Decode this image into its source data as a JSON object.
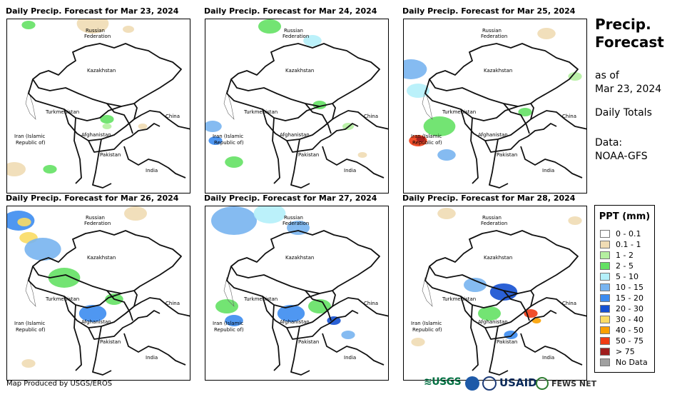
{
  "panels": [
    {
      "title": "Daily Precip. Forecast for Mar 23, 2024"
    },
    {
      "title": "Daily Precip. Forecast for Mar 24, 2024"
    },
    {
      "title": "Daily Precip. Forecast for Mar 25, 2024"
    },
    {
      "title": "Daily Precip. Forecast for Mar 26, 2024"
    },
    {
      "title": "Daily Precip. Forecast for Mar 27, 2024"
    },
    {
      "title": "Daily Precip. Forecast for Mar 28, 2024"
    }
  ],
  "map_labels": {
    "russia_1": "Russian",
    "russia_2": "Federation",
    "kazakhstan": "Kazakhstan",
    "turkmenistan": "Turkmenistan",
    "china": "China",
    "iran_1": "Iran  (Islamic",
    "iran_2": "Republic of)",
    "afghanistan": "Afghanistan",
    "pakistan": "Pakistan",
    "india": "India"
  },
  "side": {
    "title_line1": "Precip.",
    "title_line2": "Forecast",
    "asof_line1": "as of",
    "asof_line2": "Mar 23, 2024",
    "daily_totals": "Daily Totals",
    "data_line1": "Data:",
    "data_line2": "NOAA-GFS"
  },
  "legend": {
    "title": "PPT (mm)",
    "items": [
      {
        "label": "0 - 0.1",
        "color": "#ffffff"
      },
      {
        "label": "0.1 - 1",
        "color": "#f0dcb4"
      },
      {
        "label": "1 - 2",
        "color": "#b4f0a0"
      },
      {
        "label": "2 - 5",
        "color": "#64e164"
      },
      {
        "label": "5 - 10",
        "color": "#b4f0fa"
      },
      {
        "label": "10 - 15",
        "color": "#78b4f0"
      },
      {
        "label": "15 - 20",
        "color": "#3c8cf0"
      },
      {
        "label": "20 - 30",
        "color": "#1450d2"
      },
      {
        "label": "30 - 40",
        "color": "#fadc64"
      },
      {
        "label": "40 - 50",
        "color": "#faa000"
      },
      {
        "label": "50 - 75",
        "color": "#f03c14"
      },
      {
        "label": "> 75",
        "color": "#a01e1e"
      },
      {
        "label": "No Data",
        "color": "#a0a0a0"
      }
    ]
  },
  "credit": "Map Produced by USGS/EROS",
  "logos": {
    "usgs": "USGS",
    "usaid": "USAID",
    "fews": "FEWS NET"
  }
}
